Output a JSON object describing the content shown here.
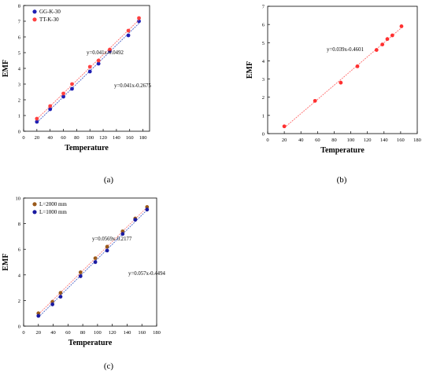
{
  "captions": {
    "a": "(a)",
    "b": "(b)",
    "c": "(c)"
  },
  "chart_data": [
    {
      "id": "a",
      "type": "scatter",
      "xlabel": "Temperature",
      "ylabel": "EMF",
      "xlim": [
        0,
        190
      ],
      "ylim": [
        0,
        8
      ],
      "xticks": [
        0,
        20,
        40,
        60,
        80,
        100,
        120,
        140,
        160,
        180
      ],
      "yticks": [
        0,
        1,
        2,
        3,
        4,
        5,
        6,
        7,
        8
      ],
      "legend": "top-left",
      "series": [
        {
          "name": "GG-K-30",
          "color": "#1f1fb4",
          "fit_color": "#4a63c8",
          "x": [
            20,
            40,
            60,
            73,
            100,
            113,
            130,
            158,
            174
          ],
          "y": [
            0.6,
            1.4,
            2.2,
            2.7,
            3.8,
            4.3,
            5.1,
            6.1,
            7.0
          ],
          "fit": {
            "slope": 0.041,
            "intercept": -0.2675
          },
          "equation": "y=0.041x-0.2675"
        },
        {
          "name": "TT-K-30",
          "color": "#ff4040",
          "fit_color": "#ff6a6a",
          "x": [
            20,
            40,
            60,
            73,
            100,
            113,
            130,
            158,
            174
          ],
          "y": [
            0.8,
            1.6,
            2.4,
            3.0,
            4.1,
            4.5,
            5.2,
            6.4,
            7.2
          ],
          "fit": {
            "slope": 0.041,
            "intercept": -0.0492
          },
          "equation": "y=0.041x-0.0492"
        }
      ]
    },
    {
      "id": "b",
      "type": "scatter",
      "xlabel": "Temperature",
      "ylabel": "EMF",
      "xlim": [
        0,
        180
      ],
      "ylim": [
        0,
        7
      ],
      "xticks": [
        0,
        20,
        40,
        60,
        80,
        100,
        120,
        140,
        160,
        180
      ],
      "yticks": [
        0,
        1,
        2,
        3,
        4,
        5,
        6,
        7
      ],
      "series": [
        {
          "color": "#ff3030",
          "fit_color": "#ff6a6a",
          "x": [
            20,
            57,
            88,
            108,
            131,
            138,
            144,
            150,
            161
          ],
          "y": [
            0.4,
            1.8,
            2.8,
            3.7,
            4.6,
            4.9,
            5.2,
            5.4,
            5.9
          ],
          "fit": {
            "slope": 0.039,
            "intercept": -0.4601
          },
          "equation": "y=0.039x-0.4601"
        }
      ]
    },
    {
      "id": "c",
      "type": "scatter",
      "xlabel": "Temperature",
      "ylabel": "EMF",
      "xlim": [
        0,
        180
      ],
      "ylim": [
        0,
        10
      ],
      "xticks": [
        0,
        20,
        40,
        60,
        80,
        100,
        120,
        140,
        160,
        180
      ],
      "yticks": [
        0,
        2,
        4,
        6,
        8,
        10
      ],
      "legend": "top-left",
      "series": [
        {
          "name": "L=2000 mm",
          "color": "#9a5a1a",
          "fit_color": "#ff8080",
          "x": [
            20,
            39,
            50,
            77,
            97,
            113,
            134,
            151,
            167
          ],
          "y": [
            1.0,
            1.9,
            2.6,
            4.2,
            5.3,
            6.2,
            7.4,
            8.4,
            9.3
          ],
          "fit": {
            "slope": 0.0569,
            "intercept": -0.2177
          },
          "equation": "y=0.0569x-0.2177"
        },
        {
          "name": "L=1000 mm",
          "color": "#1a1aa0",
          "fit_color": "#4a63c8",
          "x": [
            20,
            39,
            50,
            77,
            97,
            113,
            134,
            151,
            167
          ],
          "y": [
            0.8,
            1.7,
            2.3,
            3.9,
            5.0,
            5.9,
            7.2,
            8.3,
            9.1
          ],
          "fit": {
            "slope": 0.057,
            "intercept": -0.4494
          },
          "equation": "y=0.057x-0.4494"
        }
      ]
    }
  ]
}
